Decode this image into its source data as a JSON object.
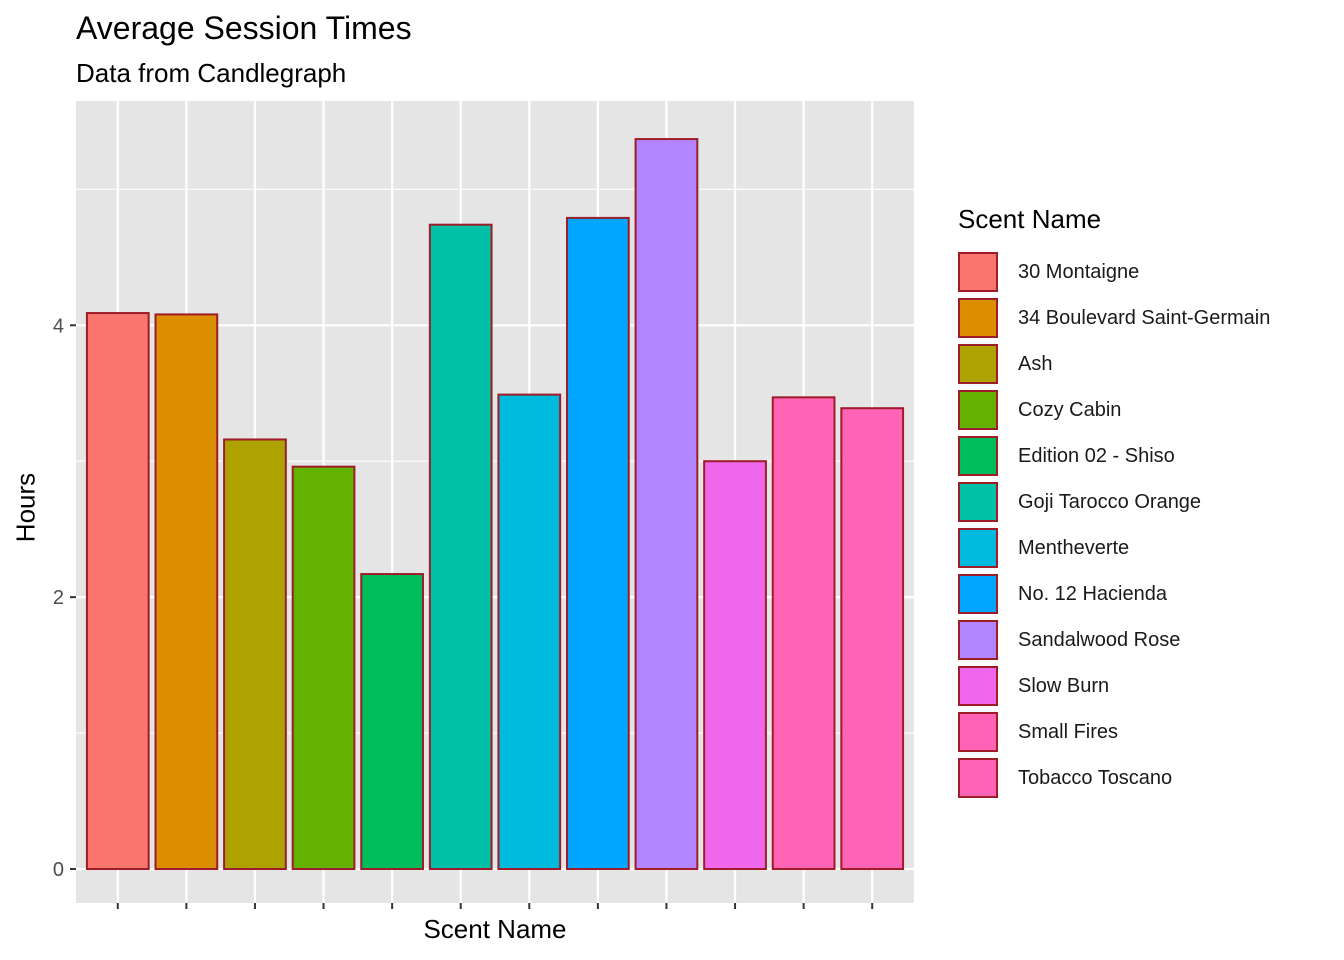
{
  "chart_data": {
    "type": "bar",
    "title": "Average Session Times",
    "subtitle": "Data from Candlegraph",
    "xlabel": "Scent Name",
    "ylabel": "Hours",
    "ylim": [
      -0.25,
      5.65
    ],
    "yticks": [
      0,
      2,
      4
    ],
    "categories": [
      "30 Montaigne",
      "34 Boulevard Saint-Germain",
      "Ash",
      "Cozy Cabin",
      "Edition 02 - Shiso",
      "Goji Tarocco Orange",
      "Mentheverte",
      "No. 12 Hacienda",
      "Sandalwood Rose",
      "Slow Burn",
      "Small Fires",
      "Tobacco Toscano"
    ],
    "values": [
      4.09,
      4.08,
      3.16,
      2.96,
      2.17,
      4.74,
      3.49,
      4.79,
      5.37,
      3.0,
      3.47,
      3.39
    ],
    "colors": [
      "#F8766D",
      "#DB8E00",
      "#AEA200",
      "#64B200",
      "#00BD5C",
      "#00C1A7",
      "#00BADE",
      "#00A6FF",
      "#B385FF",
      "#EF67EB",
      "#FF63B6",
      "#FF63B6"
    ],
    "bar_outline": "#9e1c28",
    "panel_background": "#e5e5e5",
    "grid": true,
    "legend": {
      "title": "Scent Name",
      "position": "right"
    }
  }
}
